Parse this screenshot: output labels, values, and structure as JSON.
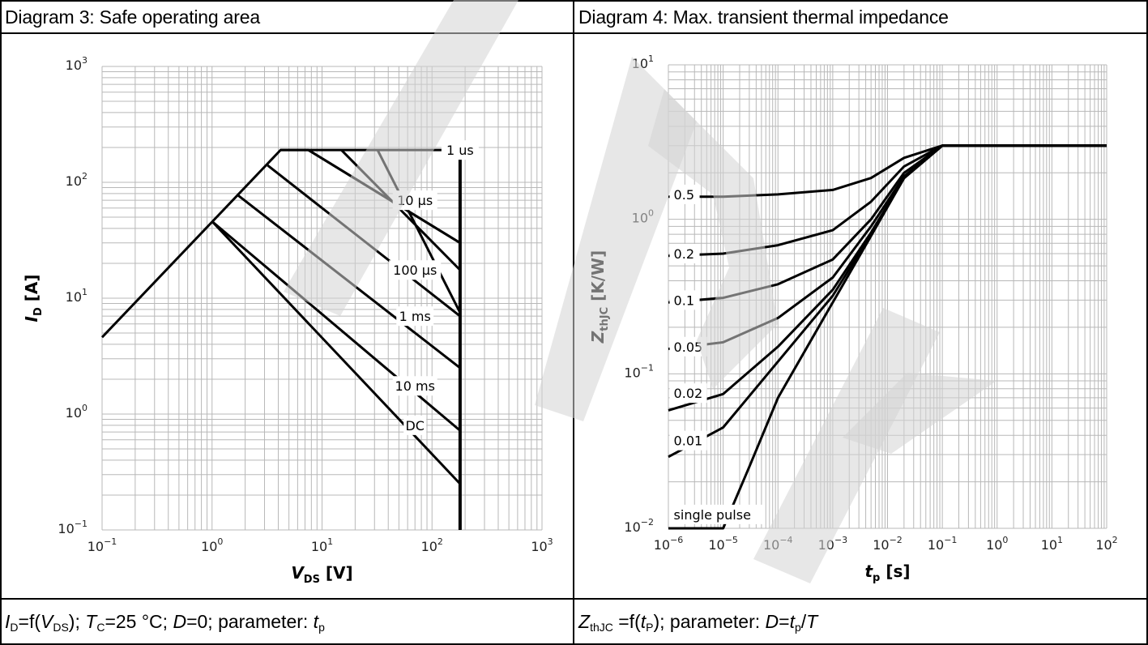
{
  "panels": {
    "left": {
      "title": "Diagram 3: Safe operating area",
      "caption": {
        "parts": [
          {
            "t": "I",
            "i": true
          },
          {
            "t": "D",
            "sub": true
          },
          {
            "t": "=f("
          },
          {
            "t": "V",
            "i": true
          },
          {
            "t": "DS",
            "sub": true
          },
          {
            "t": "); "
          },
          {
            "t": "T",
            "i": true
          },
          {
            "t": "C",
            "sub": true
          },
          {
            "t": "=25 °C; "
          },
          {
            "t": "D",
            "i": true
          },
          {
            "t": "=0; parameter: "
          },
          {
            "t": "t",
            "i": true
          },
          {
            "t": "p",
            "sub": true
          }
        ]
      }
    },
    "right": {
      "title": "Diagram 4: Max. transient thermal impedance",
      "caption": {
        "parts": [
          {
            "t": "Z",
            "i": true
          },
          {
            "t": "thJC",
            "sub": true
          },
          {
            "t": " =f("
          },
          {
            "t": "t",
            "i": true
          },
          {
            "t": "P",
            "sub": true
          },
          {
            "t": "); parameter: "
          },
          {
            "t": "D",
            "i": true
          },
          {
            "t": "="
          },
          {
            "t": "t",
            "i": true
          },
          {
            "t": "p",
            "sub": true
          },
          {
            "t": "/"
          },
          {
            "t": "T",
            "i": true
          }
        ]
      }
    }
  },
  "chart_data": [
    {
      "type": "line",
      "title": "Diagram 3: Safe operating area",
      "xlabel": {
        "main": "V",
        "sub": "DS",
        "unit": " [V]"
      },
      "ylabel": {
        "main": "I",
        "sub": "D",
        "unit": " [A]"
      },
      "xscale": "log",
      "yscale": "log",
      "xlim": [
        0.1,
        1000
      ],
      "ylim": [
        0.1,
        1000
      ],
      "xticks": [
        {
          "base": "10",
          "exp": "−1"
        },
        {
          "base": "10",
          "exp": "0"
        },
        {
          "base": "10",
          "exp": "1"
        },
        {
          "base": "10",
          "exp": "2"
        },
        {
          "base": "10",
          "exp": "3"
        }
      ],
      "yticks": [
        {
          "base": "10",
          "exp": "−1"
        },
        {
          "base": "10",
          "exp": "0"
        },
        {
          "base": "10",
          "exp": "1"
        },
        {
          "base": "10",
          "exp": "2"
        },
        {
          "base": "10",
          "exp": "3"
        }
      ],
      "grid": true,
      "vds_max": 180,
      "id_max": 190,
      "vds_corner": 4.2,
      "series": [
        {
          "name": "1 us",
          "x": [
            0.1,
            4.2,
            180
          ],
          "y": [
            4.6,
            190,
            190
          ],
          "label_at": [
            180,
            190
          ]
        },
        {
          "name": "10 µs",
          "x": [
            4.2,
            7.5,
            180
          ],
          "y": [
            190,
            190,
            30
          ],
          "label_at": [
            70,
            70
          ]
        },
        {
          "name": "100 µs",
          "x": [
            3.2,
            180
          ],
          "y": [
            140,
            7
          ],
          "label_at": [
            70,
            17.5
          ]
        },
        {
          "name": "1 ms",
          "x": [
            1.7,
            180
          ],
          "y": [
            78,
            2.5
          ],
          "label_at": [
            70,
            7
          ]
        },
        {
          "name": "10 ms",
          "x": [
            1.0,
            180
          ],
          "y": [
            46,
            0.72
          ],
          "label_at": [
            70,
            1.75
          ]
        },
        {
          "name": "DC",
          "x": [
            1.0,
            180
          ],
          "y": [
            46,
            0.25
          ],
          "label_at": [
            70,
            0.8
          ]
        }
      ]
    },
    {
      "type": "line",
      "title": "Diagram 4: Max. transient thermal impedance",
      "xlabel": {
        "main": "t",
        "sub": "p",
        "unit": " [s]"
      },
      "ylabel": {
        "main": "Z",
        "sub": "thJC",
        "unit": " [K/W]"
      },
      "xscale": "log",
      "yscale": "log",
      "xlim": [
        1e-06,
        100
      ],
      "ylim": [
        0.01,
        10
      ],
      "xticks": [
        {
          "base": "10",
          "exp": "−6"
        },
        {
          "base": "10",
          "exp": "−5"
        },
        {
          "base": "10",
          "exp": "−4"
        },
        {
          "base": "10",
          "exp": "−3"
        },
        {
          "base": "10",
          "exp": "−2"
        },
        {
          "base": "10",
          "exp": "−1"
        },
        {
          "base": "10",
          "exp": "0"
        },
        {
          "base": "10",
          "exp": "1"
        },
        {
          "base": "10",
          "exp": "2"
        }
      ],
      "yticks": [
        {
          "base": "10",
          "exp": "−2"
        },
        {
          "base": "10",
          "exp": "−1"
        },
        {
          "base": "10",
          "exp": "0"
        },
        {
          "base": "10",
          "exp": "1"
        }
      ],
      "grid": true,
      "series": [
        {
          "name": "0.5",
          "x": [
            1e-06,
            1e-05,
            0.0001,
            0.001,
            0.005,
            0.02,
            0.1,
            100
          ],
          "y": [
            1.4,
            1.4,
            1.45,
            1.55,
            1.85,
            2.5,
            3.0,
            3.0
          ]
        },
        {
          "name": "0.2",
          "x": [
            1e-06,
            1e-05,
            0.0001,
            0.001,
            0.005,
            0.02,
            0.1,
            100
          ],
          "y": [
            0.58,
            0.6,
            0.68,
            0.85,
            1.3,
            2.2,
            3.0,
            3.0
          ]
        },
        {
          "name": "0.1",
          "x": [
            1e-06,
            1e-05,
            0.0001,
            0.001,
            0.005,
            0.02,
            0.1,
            100
          ],
          "y": [
            0.29,
            0.31,
            0.38,
            0.55,
            1.0,
            2.0,
            3.0,
            3.0
          ]
        },
        {
          "name": "0.05",
          "x": [
            1e-06,
            1e-05,
            0.0001,
            0.001,
            0.005,
            0.02,
            0.1,
            100
          ],
          "y": [
            0.145,
            0.16,
            0.23,
            0.42,
            0.9,
            1.9,
            3.0,
            3.0
          ]
        },
        {
          "name": "0.02",
          "x": [
            1e-06,
            1e-05,
            0.0001,
            0.001,
            0.005,
            0.02,
            0.1,
            100
          ],
          "y": [
            0.058,
            0.074,
            0.15,
            0.35,
            0.82,
            1.85,
            3.0,
            3.0
          ]
        },
        {
          "name": "0.01",
          "x": [
            1e-06,
            1e-05,
            0.0001,
            0.001,
            0.005,
            0.02,
            0.1,
            100
          ],
          "y": [
            0.029,
            0.045,
            0.12,
            0.32,
            0.8,
            1.85,
            3.0,
            3.0
          ]
        },
        {
          "name": "single pulse",
          "x": [
            1e-06,
            1e-05,
            3e-05,
            0.0001,
            0.001,
            0.005,
            0.02,
            0.1,
            100
          ],
          "y": [
            0.003,
            0.01,
            0.025,
            0.07,
            0.29,
            0.78,
            1.85,
            3.0,
            3.0
          ]
        }
      ]
    }
  ]
}
